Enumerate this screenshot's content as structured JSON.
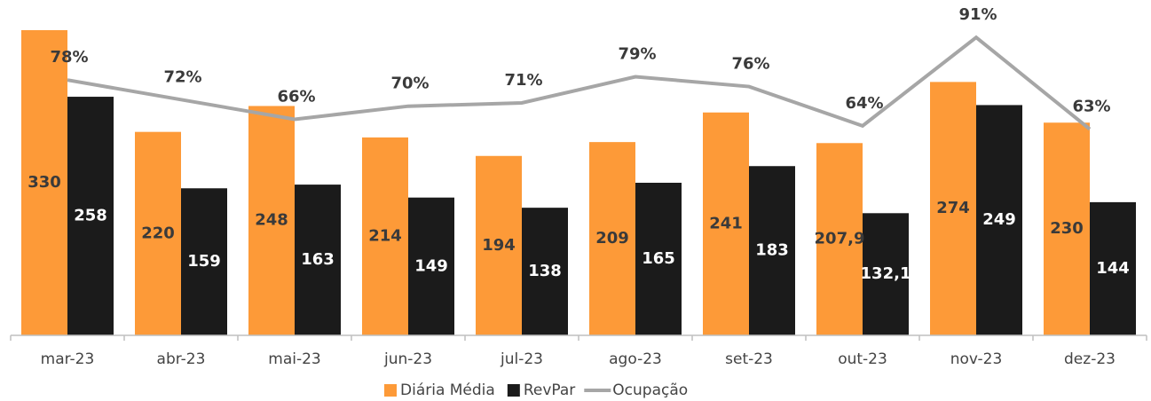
{
  "chart_data": {
    "type": "bar_line",
    "categories": [
      "mar-23",
      "abr-23",
      "mai-23",
      "jun-23",
      "jul-23",
      "ago-23",
      "set-23",
      "out-23",
      "nov-23",
      "dez-23"
    ],
    "series": [
      {
        "name": "Diária Média",
        "type": "bar",
        "color": "#fd9a38",
        "values": [
          330,
          220,
          248,
          214,
          194,
          209,
          241,
          207.9,
          274,
          230
        ],
        "value_labels": [
          "330",
          "220",
          "248",
          "214",
          "194",
          "209",
          "241",
          "207,9",
          "274",
          "230"
        ]
      },
      {
        "name": "RevPar",
        "type": "bar",
        "color": "#1b1b1b",
        "values": [
          258,
          159,
          163,
          149,
          138,
          165,
          183,
          132.1,
          249,
          144
        ],
        "value_labels": [
          "258",
          "159",
          "163",
          "149",
          "138",
          "165",
          "183",
          "132,1",
          "249",
          "144"
        ]
      },
      {
        "name": "Ocupação",
        "type": "line",
        "axis": "y2",
        "color": "#a6a6a6",
        "values": [
          78,
          72,
          66,
          70,
          71,
          79,
          76,
          64,
          91,
          63
        ],
        "value_labels": [
          "78%",
          "72%",
          "66%",
          "70%",
          "71%",
          "79%",
          "76%",
          "64%",
          "91%",
          "63%"
        ]
      }
    ],
    "ylim": [
      0,
      330
    ],
    "y2lim": [
      0,
      100
    ],
    "legend": "bottom"
  }
}
